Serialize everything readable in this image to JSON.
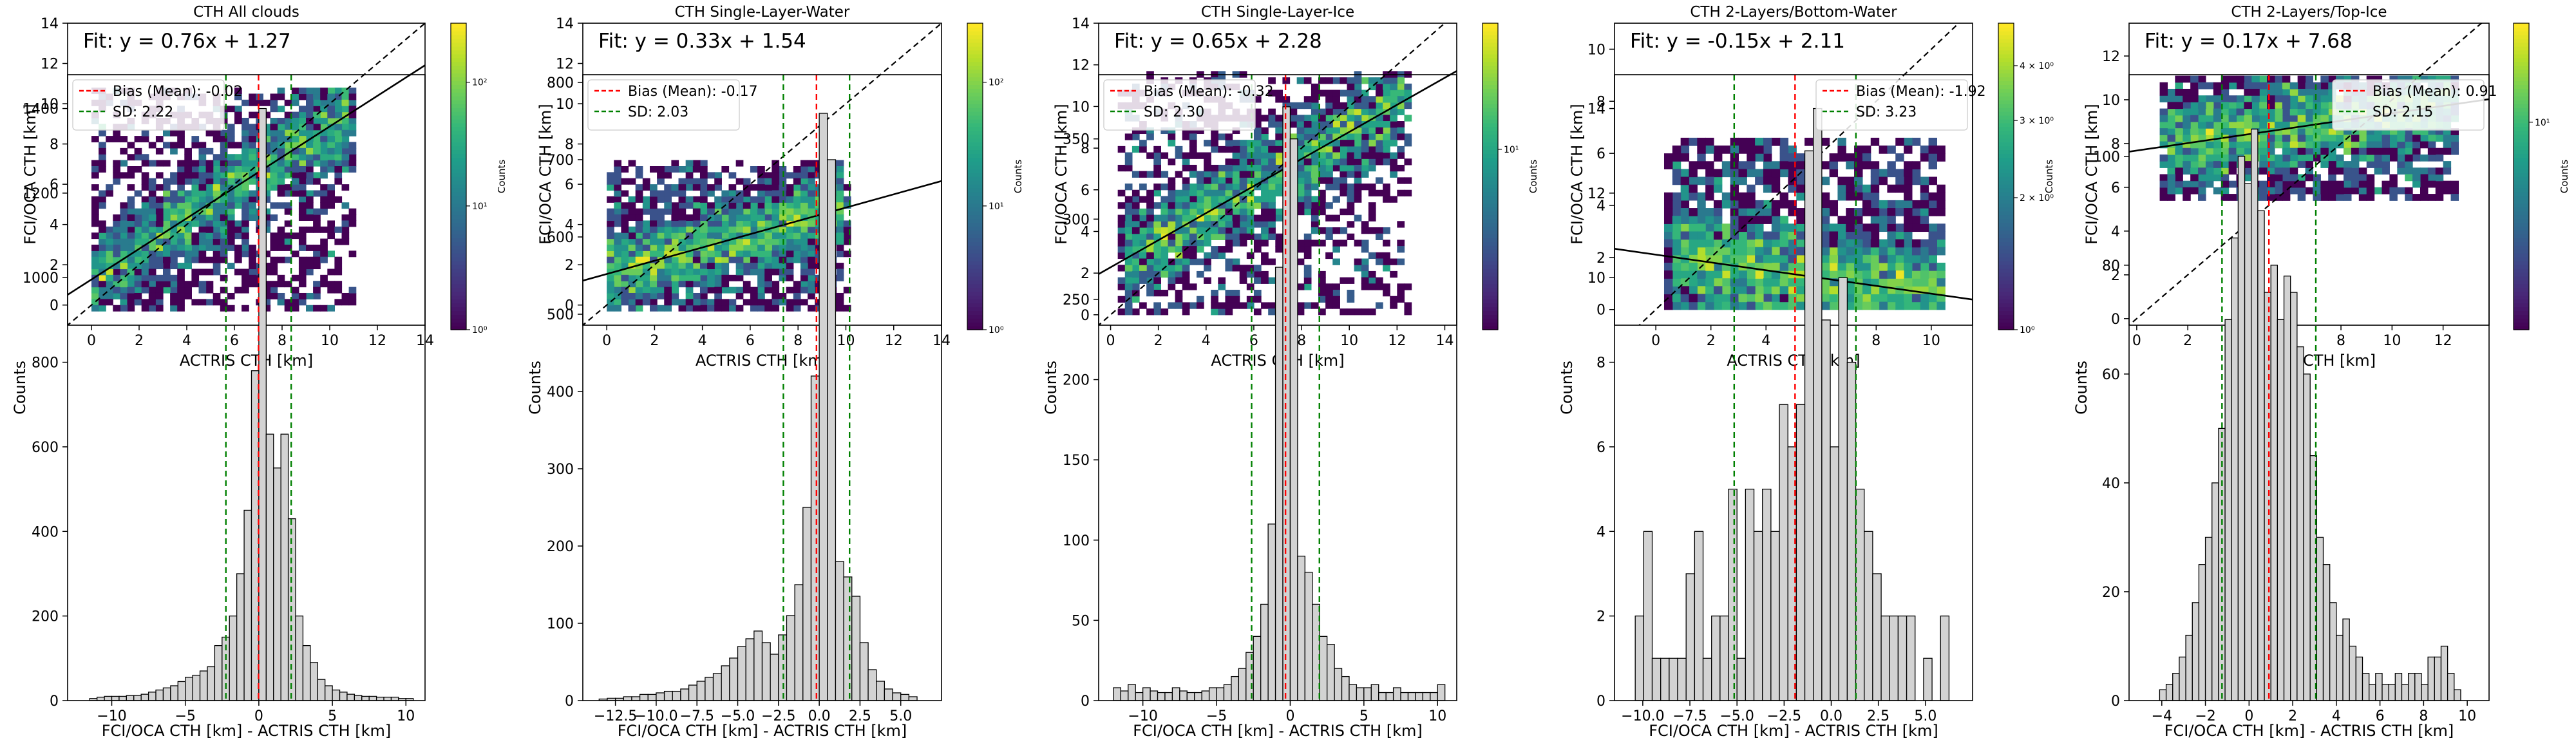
{
  "colorbar_label": "Counts",
  "colormap": [
    "#440154",
    "#482878",
    "#3e4989",
    "#31688e",
    "#26828e",
    "#1f9e89",
    "#35b779",
    "#6ece58",
    "#b5de2b",
    "#fde725"
  ],
  "colors": {
    "hist_fill": "#d3d3d3",
    "bias_line": "#ff0000",
    "sd_line": "#008000",
    "fit_line": "#000000"
  },
  "chart_data": [
    {
      "type": "heatmap",
      "title": "CTH All clouds",
      "xlabel": "ACTRIS CTH [km]",
      "ylabel": "FCI/OCA CTH [km]",
      "xlim": [
        -1,
        14
      ],
      "ylim": [
        -1,
        14
      ],
      "xticks": [
        "0",
        "2",
        "4",
        "6",
        "8",
        "10",
        "12",
        "14"
      ],
      "yticks": [
        "0",
        "2",
        "4",
        "6",
        "8",
        "10",
        "12",
        "14"
      ],
      "fit_label": "Fit: y = 0.76x + 1.27",
      "fit": {
        "slope": 0.76,
        "intercept": 1.27
      },
      "colorbar": {
        "scale": "log",
        "range": [
          1,
          300
        ],
        "tick_values": [
          1,
          10,
          100
        ],
        "tick_labels": [
          "10⁰",
          "10¹",
          "10²"
        ]
      },
      "density": {
        "scatter_sd": 1.2,
        "extra_x_min": 0,
        "extra_x_max": 11,
        "extra_y_min": -0.3,
        "extra_y_max": 10.8
      }
    },
    {
      "type": "heatmap",
      "title": "CTH Single-Layer-Water",
      "xlabel": "ACTRIS CTH [km]",
      "ylabel": "FCI/OCA CTH [km]",
      "xlim": [
        -1,
        14
      ],
      "ylim": [
        -1,
        14
      ],
      "xticks": [
        "0",
        "2",
        "4",
        "6",
        "8",
        "10",
        "12",
        "14"
      ],
      "yticks": [
        "0",
        "2",
        "4",
        "6",
        "8",
        "10",
        "12",
        "14"
      ],
      "fit_label": "Fit: y = 0.33x + 1.54",
      "fit": {
        "slope": 0.33,
        "intercept": 1.54
      },
      "colorbar": {
        "scale": "log",
        "range": [
          1,
          300
        ],
        "tick_values": [
          1,
          10,
          100
        ],
        "tick_labels": [
          "10⁰",
          "10¹",
          "10²"
        ]
      },
      "density": {
        "scatter_sd": 1.0,
        "extra_x_min": 0,
        "extra_x_max": 10,
        "extra_y_min": -0.3,
        "extra_y_max": 7
      }
    },
    {
      "type": "heatmap",
      "title": "CTH Single-Layer-Ice",
      "xlabel": "ACTRIS CTH [km]",
      "ylabel": "FCI/OCA CTH [km]",
      "xlim": [
        -0.5,
        14.5
      ],
      "ylim": [
        -0.5,
        14
      ],
      "xticks": [
        "0",
        "2",
        "4",
        "6",
        "8",
        "10",
        "12",
        "14"
      ],
      "yticks": [
        "0",
        "2",
        "4",
        "6",
        "8",
        "10",
        "12",
        "14"
      ],
      "fit_label": "Fit: y = 0.65x + 2.28",
      "fit": {
        "slope": 0.65,
        "intercept": 2.28
      },
      "colorbar": {
        "scale": "log",
        "range": [
          1,
          50
        ],
        "tick_values": [
          10
        ],
        "tick_labels": [
          "10¹"
        ]
      },
      "density": {
        "scatter_sd": 1.2,
        "extra_x_min": 0.5,
        "extra_x_max": 12.5,
        "extra_y_min": 0,
        "extra_y_max": 11.5
      }
    },
    {
      "type": "heatmap",
      "title": "CTH 2-Layers/Bottom-Water",
      "xlabel": "ACTRIS CTH [km]",
      "ylabel": "FCI/OCA CTH [km]",
      "xlim": [
        -1.5,
        11.5
      ],
      "ylim": [
        -0.6,
        11
      ],
      "xticks": [
        "0",
        "2",
        "4",
        "6",
        "8",
        "10"
      ],
      "yticks": [
        "0",
        "2",
        "4",
        "6",
        "8",
        "10"
      ],
      "fit_label": "Fit: y = -0.15x + 2.11",
      "fit": {
        "slope": -0.15,
        "intercept": 2.11
      },
      "colorbar": {
        "scale": "log",
        "range": [
          1,
          5
        ],
        "tick_values": [
          1,
          2,
          3,
          4
        ],
        "tick_labels": [
          "10⁰",
          "2 × 10⁰",
          "3 × 10⁰",
          "4 × 10⁰"
        ]
      },
      "density": {
        "scatter_sd": 1.0,
        "extra_x_min": 0.5,
        "extra_x_max": 10.5,
        "extra_y_min": 0,
        "extra_y_max": 6.5
      }
    },
    {
      "type": "heatmap",
      "title": "CTH 2-Layers/Top-Ice",
      "xlabel": "ACTRIS CTH [km]",
      "ylabel": "FCI/OCA CTH [km]",
      "xlim": [
        -0.3,
        13.8
      ],
      "ylim": [
        -0.3,
        13.5
      ],
      "xticks": [
        "0",
        "2",
        "4",
        "6",
        "8",
        "10",
        "12"
      ],
      "yticks": [
        "0",
        "2",
        "4",
        "6",
        "8",
        "10",
        "12"
      ],
      "fit_label": "Fit: y = 0.17x + 7.68",
      "fit": {
        "slope": 0.17,
        "intercept": 7.68
      },
      "colorbar": {
        "scale": "log",
        "range": [
          1,
          30
        ],
        "tick_values": [
          10
        ],
        "tick_labels": [
          "10¹"
        ]
      },
      "density": {
        "scatter_sd": 1.0,
        "extra_x_min": 1,
        "extra_x_max": 12.5,
        "extra_y_min": 5.5,
        "extra_y_max": 11
      }
    },
    {
      "type": "bar",
      "xlabel": "FCI/OCA CTH [km] - ACTRIS CTH [km]",
      "ylabel": "Counts",
      "xlim": [
        -13,
        11.3
      ],
      "ylim": [
        0,
        1480
      ],
      "xticks": [
        -10,
        -5,
        0,
        5,
        10
      ],
      "xtick_labels": [
        "−10",
        "−5",
        "0",
        "5",
        "10"
      ],
      "yticks": [
        0,
        200,
        400,
        600,
        800,
        1000,
        1200,
        1400
      ],
      "bin_width": 0.5,
      "bins": [
        -11.5,
        -11,
        -10.5,
        -10,
        -9.5,
        -9,
        -8.5,
        -8,
        -7.5,
        -7,
        -6.5,
        -6,
        -5.5,
        -5,
        -4.5,
        -4,
        -3.5,
        -3,
        -2.5,
        -2,
        -1.5,
        -1,
        -0.5,
        0,
        0.5,
        1,
        1.5,
        2,
        2.5,
        3,
        3.5,
        4,
        4.5,
        5,
        5.5,
        6,
        6.5,
        7,
        7.5,
        8,
        8.5,
        9,
        9.5,
        10
      ],
      "values": [
        5,
        8,
        10,
        10,
        10,
        12,
        12,
        15,
        20,
        25,
        30,
        35,
        45,
        55,
        60,
        70,
        80,
        130,
        150,
        200,
        300,
        450,
        780,
        1400,
        630,
        550,
        630,
        430,
        200,
        130,
        90,
        50,
        35,
        25,
        20,
        15,
        12,
        10,
        10,
        8,
        8,
        8,
        5,
        5
      ],
      "bias": -0.02,
      "sd": 2.22,
      "sd_lines": [
        -2.24,
        2.2
      ],
      "legend": {
        "position": "top-left",
        "items": [
          "Bias (Mean): -0.02",
          "SD: 2.22"
        ]
      }
    },
    {
      "type": "bar",
      "xlabel": "FCI/OCA CTH [km] - ACTRIS CTH [km]",
      "ylabel": "Counts",
      "xlim": [
        -14.5,
        7.5
      ],
      "ylim": [
        0,
        810
      ],
      "xticks": [
        -12.5,
        -10,
        -7.5,
        -5,
        -2.5,
        0,
        2.5,
        5
      ],
      "xtick_labels": [
        "−12.5",
        "−10.0",
        "−7.5",
        "−5.0",
        "−2.5",
        "0.0",
        "2.5",
        "5.0"
      ],
      "yticks": [
        0,
        100,
        200,
        300,
        400,
        500,
        600,
        700,
        800
      ],
      "bin_width": 0.5,
      "bins": [
        -13.5,
        -13,
        -12.5,
        -12,
        -11.5,
        -11,
        -10.5,
        -10,
        -9.5,
        -9,
        -8.5,
        -8,
        -7.5,
        -7,
        -6.5,
        -6,
        -5.5,
        -5,
        -4.5,
        -4,
        -3.5,
        -3,
        -2.5,
        -2,
        -1.5,
        -1,
        -0.5,
        0,
        0.5,
        1,
        1.5,
        2,
        2.5,
        3,
        3.5,
        4,
        4.5,
        5,
        5.5
      ],
      "values": [
        2,
        3,
        3,
        5,
        5,
        8,
        8,
        10,
        12,
        12,
        15,
        20,
        25,
        30,
        35,
        45,
        55,
        70,
        80,
        90,
        75,
        60,
        85,
        110,
        150,
        250,
        420,
        760,
        700,
        180,
        160,
        135,
        75,
        40,
        25,
        15,
        10,
        8,
        5
      ],
      "bias": -0.17,
      "sd": 2.03,
      "sd_lines": [
        -2.2,
        1.86
      ],
      "legend": {
        "position": "top-left",
        "items": [
          "Bias (Mean): -0.17",
          "SD: 2.03"
        ]
      }
    },
    {
      "type": "bar",
      "xlabel": "FCI/OCA CTH [km] - ACTRIS CTH [km]",
      "ylabel": "Counts",
      "xlim": [
        -13,
        11.3
      ],
      "ylim": [
        0,
        390
      ],
      "xticks": [
        -10,
        -5,
        0,
        5,
        10
      ],
      "xtick_labels": [
        "−10",
        "−5",
        "0",
        "5",
        "10"
      ],
      "yticks": [
        0,
        50,
        100,
        150,
        200,
        250,
        300,
        350
      ],
      "bin_width": 0.5,
      "bins": [
        -12,
        -11.5,
        -11,
        -10.5,
        -10,
        -9.5,
        -9,
        -8.5,
        -8,
        -7.5,
        -7,
        -6.5,
        -6,
        -5.5,
        -5,
        -4.5,
        -4,
        -3.5,
        -3,
        -2.5,
        -2,
        -1.5,
        -1,
        -0.5,
        0,
        0.5,
        1,
        1.5,
        2,
        2.5,
        3,
        3.5,
        4,
        4.5,
        5,
        5.5,
        6,
        6.5,
        7,
        7.5,
        8,
        8.5,
        9,
        9.5,
        10
      ],
      "values": [
        8,
        6,
        10,
        5,
        8,
        6,
        5,
        5,
        8,
        6,
        5,
        5,
        6,
        8,
        8,
        10,
        15,
        20,
        30,
        40,
        60,
        110,
        270,
        370,
        350,
        90,
        80,
        60,
        40,
        35,
        20,
        15,
        10,
        8,
        8,
        10,
        5,
        5,
        8,
        5,
        5,
        5,
        5,
        5,
        10
      ],
      "bias": -0.32,
      "sd": 2.3,
      "sd_lines": [
        -2.62,
        1.98
      ],
      "legend": {
        "position": "top-left",
        "items": [
          "Bias (Mean): -0.32",
          "SD: 2.30"
        ]
      }
    },
    {
      "type": "bar",
      "xlabel": "FCI/OCA CTH [km] - ACTRIS CTH [km]",
      "ylabel": "Counts",
      "xlim": [
        -11.5,
        7.5
      ],
      "ylim": [
        0,
        14.8
      ],
      "xticks": [
        -10,
        -7.5,
        -5,
        -2.5,
        0,
        2.5,
        5
      ],
      "xtick_labels": [
        "−10.0",
        "−7.5",
        "−5.0",
        "−2.5",
        "0.0",
        "2.5",
        "5.0"
      ],
      "yticks": [
        0,
        2,
        4,
        6,
        8,
        10,
        12,
        14
      ],
      "bin_width": 0.45,
      "bins": [
        -10.4,
        -9.95,
        -9.5,
        -9.05,
        -8.6,
        -8.15,
        -7.7,
        -7.25,
        -6.8,
        -6.35,
        -5.9,
        -5.45,
        -5,
        -4.55,
        -4.1,
        -3.65,
        -3.2,
        -2.75,
        -2.3,
        -1.85,
        -1.4,
        -0.95,
        -0.5,
        -0.05,
        0.4,
        0.85,
        1.3,
        1.75,
        2.2,
        2.65,
        3.1,
        3.55,
        4,
        4.45,
        4.9,
        5.35,
        5.8
      ],
      "values": [
        2,
        4,
        1,
        1,
        1,
        1,
        3,
        4,
        1,
        2,
        2,
        5,
        1,
        5,
        4,
        5,
        4,
        7,
        6,
        7,
        13,
        14,
        9,
        6,
        10,
        8,
        5,
        4,
        3,
        2,
        2,
        2,
        2,
        0,
        1,
        0,
        2
      ],
      "bias": -1.92,
      "sd": 3.23,
      "sd_lines": [
        -5.15,
        1.31
      ],
      "legend": {
        "position": "top-right",
        "items": [
          "Bias (Mean): -1.92",
          "SD: 3.23"
        ]
      }
    },
    {
      "type": "bar",
      "xlabel": "FCI/OCA CTH [km] - ACTRIS CTH [km]",
      "ylabel": "Counts",
      "xlim": [
        -5.5,
        11
      ],
      "ylim": [
        0,
        115
      ],
      "xticks": [
        -4,
        -2,
        0,
        2,
        4,
        6,
        8,
        10
      ],
      "xtick_labels": [
        "−4",
        "−2",
        "0",
        "2",
        "4",
        "6",
        "8",
        "10"
      ],
      "yticks": [
        0,
        20,
        40,
        60,
        80,
        100
      ],
      "bin_width": 0.3,
      "bins": [
        -4.1,
        -3.8,
        -3.5,
        -3.2,
        -2.9,
        -2.6,
        -2.3,
        -2,
        -1.7,
        -1.4,
        -1.1,
        -0.8,
        -0.5,
        -0.2,
        0.1,
        0.4,
        0.7,
        1,
        1.3,
        1.6,
        1.9,
        2.2,
        2.5,
        2.8,
        3.1,
        3.4,
        3.7,
        4,
        4.3,
        4.6,
        4.9,
        5.2,
        5.5,
        5.8,
        6.1,
        6.4,
        6.7,
        7,
        7.3,
        7.6,
        7.9,
        8.2,
        8.5,
        8.8,
        9.1,
        9.4
      ],
      "values": [
        2,
        3,
        5,
        8,
        12,
        18,
        25,
        30,
        40,
        50,
        70,
        85,
        100,
        95,
        105,
        90,
        75,
        80,
        70,
        78,
        75,
        65,
        60,
        45,
        30,
        25,
        18,
        12,
        15,
        10,
        8,
        5,
        3,
        5,
        3,
        3,
        5,
        3,
        5,
        5,
        3,
        8,
        8,
        10,
        5,
        2
      ],
      "bias": 0.91,
      "sd": 2.15,
      "sd_lines": [
        -1.24,
        3.06
      ],
      "legend": {
        "position": "top-right",
        "items": [
          "Bias (Mean): 0.91",
          "SD: 2.15"
        ]
      }
    }
  ]
}
